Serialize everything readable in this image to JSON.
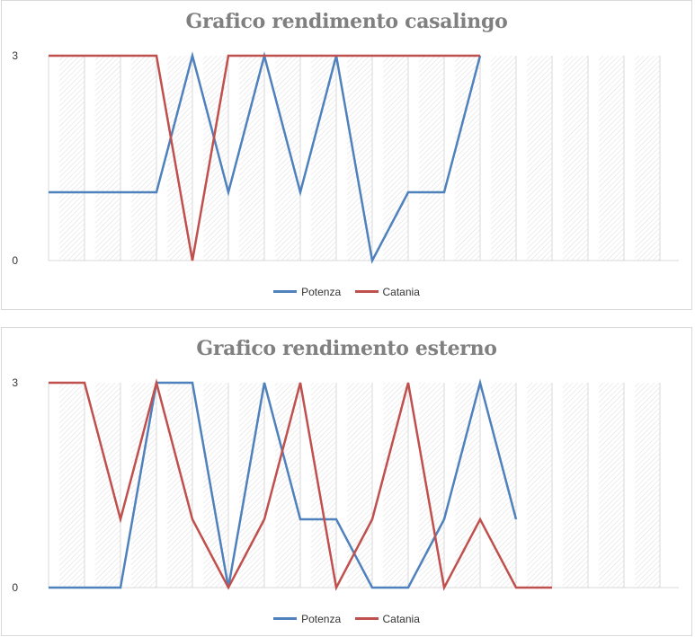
{
  "chart_data": [
    {
      "type": "line",
      "title": "Grafico rendimento casalingo",
      "xlabel": "",
      "ylabel": "",
      "ylim": [
        0,
        3
      ],
      "y_ticks": [
        "0",
        "3"
      ],
      "grid": "vertical hatched",
      "legend": "bottom",
      "x_count": 18,
      "series": [
        {
          "name": "Potenza",
          "color": "#4f81bd",
          "values": [
            1,
            1,
            1,
            1,
            3,
            1,
            3,
            1,
            3,
            0,
            1,
            1,
            3
          ]
        },
        {
          "name": "Catania",
          "color": "#c0504d",
          "values": [
            3,
            3,
            3,
            3,
            0,
            3,
            3,
            3,
            3,
            3,
            3,
            3,
            3
          ]
        }
      ]
    },
    {
      "type": "line",
      "title": "Grafico rendimento esterno",
      "xlabel": "",
      "ylabel": "",
      "ylim": [
        0,
        3
      ],
      "y_ticks": [
        "0",
        "3"
      ],
      "grid": "vertical hatched",
      "legend": "bottom",
      "x_count": 18,
      "series": [
        {
          "name": "Potenza",
          "color": "#4f81bd",
          "values": [
            0,
            0,
            0,
            3,
            3,
            0,
            3,
            1,
            1,
            0,
            0,
            1,
            3,
            1
          ]
        },
        {
          "name": "Catania",
          "color": "#c0504d",
          "values": [
            3,
            3,
            1,
            3,
            1,
            0,
            1,
            3,
            0,
            1,
            3,
            0,
            1,
            0,
            0
          ]
        }
      ]
    }
  ]
}
